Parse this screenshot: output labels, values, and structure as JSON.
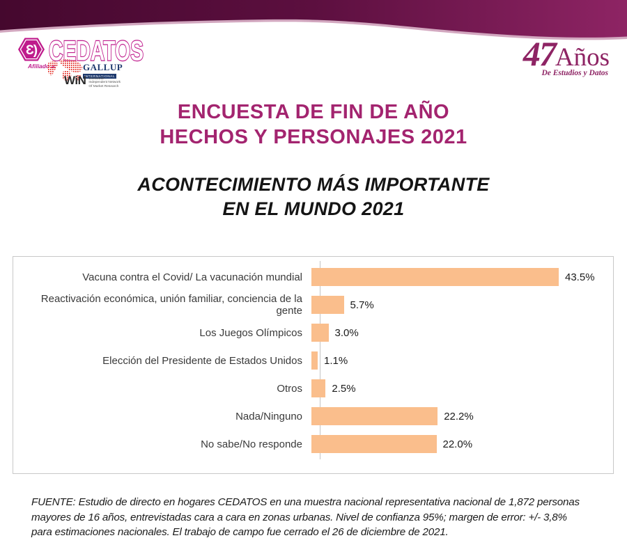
{
  "header": {
    "brand": {
      "cedatos": "CEDATOS",
      "monogram": "Ɛ)",
      "affiliation_label": "Afiliado a:",
      "gallup": "GALLUP",
      "gallup_sub": "INTERNATIONAL",
      "win": "WiN",
      "win_sub_lines": [
        "Worldwide",
        "Independent Network",
        "Of Market Research"
      ]
    },
    "anniversary": {
      "number": "47",
      "word": "Años",
      "tagline": "De Estudios y Datos"
    }
  },
  "title": {
    "line1": "ENCUESTA DE FIN DE AÑO",
    "line2": "HECHOS Y PERSONAJES 2021"
  },
  "subtitle": {
    "line1": "ACONTECIMIENTO MÁS IMPORTANTE",
    "line2": "EN EL MUNDO 2021"
  },
  "chart_data": {
    "type": "bar",
    "orientation": "horizontal",
    "title": "ACONTECIMIENTO MÁS IMPORTANTE EN EL MUNDO 2021",
    "categories": [
      "Vacuna contra el Covid/ La vacunación mundial",
      "Reactivación económica, unión familiar, conciencia de la gente",
      "Los Juegos Olímpicos",
      "Elección del Presidente de Estados Unidos",
      "Otros",
      "Nada/Ninguno",
      "No sabe/No responde"
    ],
    "values": [
      43.5,
      5.7,
      3.0,
      1.1,
      2.5,
      22.2,
      22.0
    ],
    "value_labels": [
      "43.5%",
      "5.7%",
      "3.0%",
      "1.1%",
      "2.5%",
      "22.2%",
      "22.0%"
    ],
    "xlabel": "",
    "ylabel": "",
    "xlim": [
      0,
      50
    ],
    "grid": false,
    "legend": false,
    "bar_color": "#fabe8c",
    "value_label_position": "end-of-bar"
  },
  "footer": {
    "lines": [
      "FUENTE: Estudio de directo en hogares CEDATOS en una muestra nacional representativa nacional de 1,872 personas",
      "mayores de 16 años, entrevistadas cara a cara en zonas urbanas. Nivel de confianza 95%; margen de error: +/- 3,8%",
      "para estimaciones nacionales. El trabajo de campo fue cerrado el 26 de diciembre de 2021."
    ]
  },
  "colors": {
    "banner_dark": "#45082e",
    "banner_right": "#8e2464",
    "banner_edge_light": "#c389aa",
    "logo_magenta": "#bf1c8c",
    "gallup_blue": "#1e3a6e",
    "map_red": "#e2231a",
    "title_magenta": "#a3246f",
    "anniversary_maroon": "#8e2464",
    "bar_peach": "#fabe8c",
    "chart_border": "#c8c8c8"
  }
}
